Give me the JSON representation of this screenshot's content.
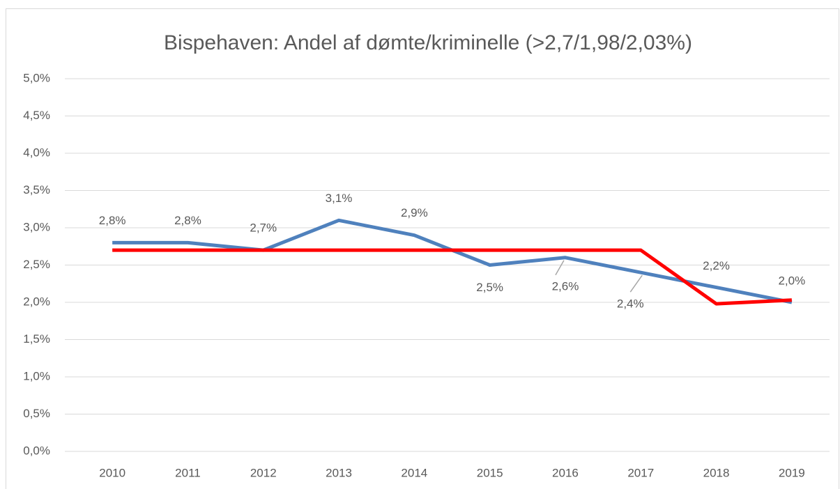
{
  "chart_data": {
    "type": "line",
    "title": "Bispehaven: Andel af dømte/kriminelle (>2,7/1,98/2,03%)",
    "categories": [
      "2010",
      "2011",
      "2012",
      "2013",
      "2014",
      "2015",
      "2016",
      "2017",
      "2018",
      "2019"
    ],
    "series": [
      {
        "color": "#4f81bd",
        "values": [
          2.8,
          2.8,
          2.7,
          3.1,
          2.9,
          2.5,
          2.6,
          2.4,
          2.2,
          2.0
        ],
        "value_labels": [
          "2,8%",
          "2,8%",
          "2,7%",
          "3,1%",
          "2,9%",
          "2,5%",
          "2,6%",
          "2,4%",
          "2,2%",
          "2,0%"
        ]
      },
      {
        "color": "#ff0000",
        "values": [
          2.7,
          2.7,
          2.7,
          2.7,
          2.7,
          2.7,
          2.7,
          2.7,
          1.98,
          2.03
        ]
      }
    ],
    "ylim": [
      0,
      5
    ],
    "yticks": [
      {
        "value": 0,
        "label": "0,0%"
      },
      {
        "value": 0.5,
        "label": "0,5%"
      },
      {
        "value": 1,
        "label": "1,0%"
      },
      {
        "value": 1.5,
        "label": "1,5%"
      },
      {
        "value": 2,
        "label": "2,0%"
      },
      {
        "value": 2.5,
        "label": "2,5%"
      },
      {
        "value": 3,
        "label": "3,0%"
      },
      {
        "value": 3.5,
        "label": "3,5%"
      },
      {
        "value": 4,
        "label": "4,0%"
      },
      {
        "value": 4.5,
        "label": "4,5%"
      },
      {
        "value": 5,
        "label": "5,0%"
      }
    ],
    "grid": true
  }
}
